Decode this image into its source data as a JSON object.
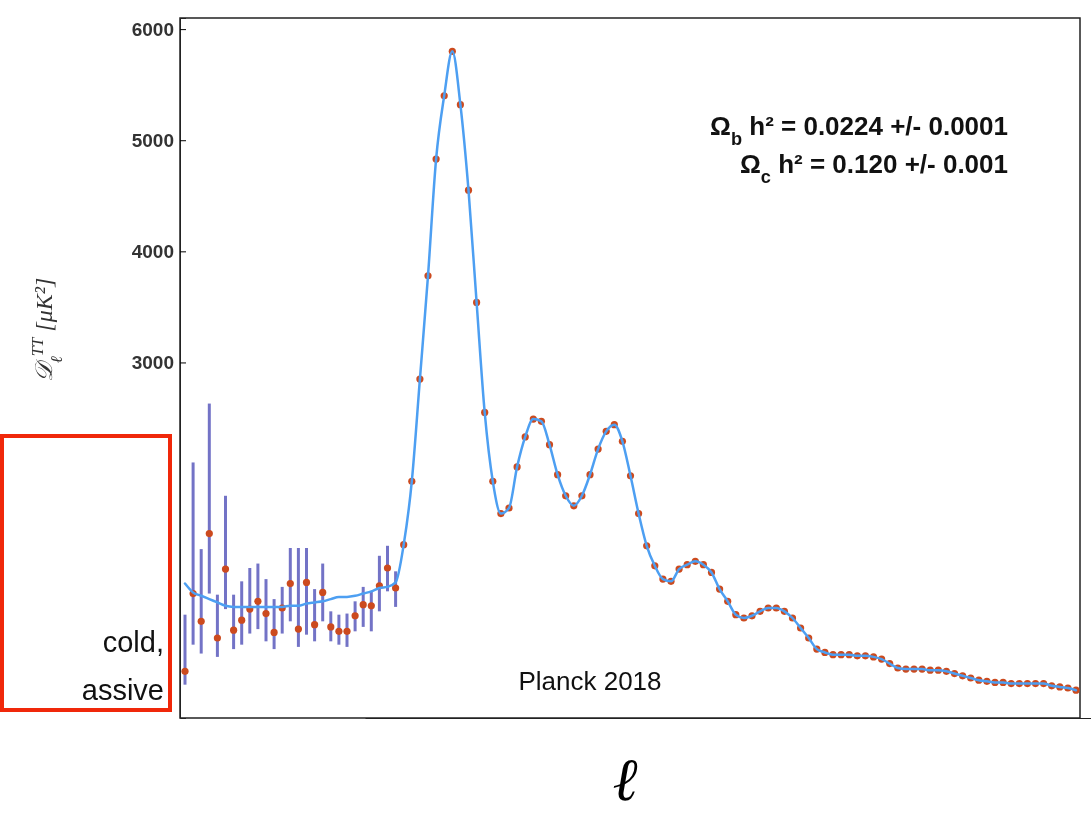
{
  "chart_data": {
    "type": "line",
    "ylabel": "𝒟$_{ℓ}$$^{TT}$ [μK²]",
    "xlabel": "ℓ",
    "ylim": [
      -200,
      6100
    ],
    "yticks": [
      3000,
      4000,
      5000,
      6000
    ],
    "annotations": [
      "Ω$_{b}$ h² = 0.0224 +/- 0.0001",
      "Ω$_{c}$ h² = 0.120 +/- 0.001",
      "Planck 2018",
      "cold,",
      "assive"
    ],
    "categories": [
      null,
      null,
      null,
      null,
      null,
      null,
      null,
      null,
      null,
      null,
      null,
      null,
      null,
      null,
      null,
      null,
      null,
      null,
      null,
      null,
      null,
      null,
      null,
      null,
      null,
      null,
      null,
      null,
      null,
      null,
      null,
      null,
      null,
      null,
      null,
      null,
      null,
      null,
      null,
      null,
      null,
      null,
      null,
      null,
      null,
      null,
      null,
      null,
      null,
      null,
      null,
      null,
      null,
      null,
      null,
      null,
      null,
      null,
      null,
      null,
      null,
      null,
      null,
      null,
      null,
      null,
      null,
      null,
      null,
      null,
      null,
      null,
      null,
      null,
      null,
      null,
      null,
      null,
      null,
      null,
      null,
      null,
      null,
      null,
      null,
      null,
      null,
      null,
      null,
      null,
      null,
      null,
      null,
      null,
      null,
      null,
      null,
      null,
      null,
      null,
      null,
      null,
      null,
      null,
      null,
      null,
      null,
      null,
      null,
      null,
      null
    ],
    "series": [
      {
        "color": "#4d9ff2",
        "values": [
          1010,
          930,
          900,
          870,
          840,
          810,
          800,
          800,
          800,
          800,
          800,
          800,
          800,
          810,
          810,
          830,
          840,
          850,
          870,
          890,
          890,
          900,
          920,
          940,
          970,
          980,
          1020,
          1360,
          1930,
          2850,
          3780,
          4830,
          5400,
          5800,
          5320,
          4550,
          3540,
          2550,
          1930,
          1640,
          1690,
          2060,
          2330,
          2490,
          2470,
          2260,
          1990,
          1800,
          1710,
          1800,
          1990,
          2220,
          2380,
          2440,
          2290,
          1980,
          1640,
          1350,
          1170,
          1050,
          1030,
          1140,
          1180,
          1210,
          1180,
          1110,
          960,
          850,
          730,
          700,
          720,
          760,
          790,
          790,
          760,
          700,
          610,
          520,
          420,
          390,
          370,
          370,
          370,
          360,
          360,
          350,
          330,
          290,
          250,
          240,
          240,
          240,
          230,
          230,
          220,
          200,
          180,
          160,
          140,
          130,
          120,
          120,
          110,
          110,
          110,
          110,
          110,
          90,
          80,
          70,
          50
        ]
      },
      {
        "type": "scatter",
        "color": "#cc4a1e",
        "values": [
          220,
          920,
          670,
          1460,
          520,
          1140,
          590,
          680,
          780,
          850,
          740,
          570,
          790,
          1010,
          600,
          1020,
          640,
          930,
          620,
          580,
          580,
          720,
          820,
          810,
          990,
          1150,
          970,
          1360,
          1930,
          2850,
          3780,
          4830,
          5400,
          5800,
          5320,
          4550,
          3540,
          2550,
          1930,
          1640,
          1690,
          2060,
          2330,
          2490,
          2470,
          2260,
          1990,
          1800,
          1710,
          1800,
          1990,
          2220,
          2380,
          2440,
          2290,
          1980,
          1640,
          1350,
          1170,
          1050,
          1030,
          1140,
          1180,
          1210,
          1180,
          1110,
          960,
          850,
          730,
          700,
          720,
          760,
          790,
          790,
          760,
          700,
          610,
          520,
          420,
          390,
          370,
          370,
          370,
          360,
          360,
          350,
          330,
          290,
          250,
          240,
          240,
          240,
          230,
          230,
          220,
          200,
          180,
          160,
          140,
          130,
          120,
          120,
          110,
          110,
          110,
          110,
          110,
          90,
          80,
          70,
          50
        ],
        "errors": [
          [
            100,
            730
          ],
          [
            460,
            2100
          ],
          [
            380,
            1320
          ],
          [
            920,
            2630
          ],
          [
            350,
            910
          ],
          [
            780,
            1800
          ],
          [
            420,
            910
          ],
          [
            460,
            1030
          ],
          [
            560,
            1150
          ],
          [
            600,
            1190
          ],
          [
            490,
            1050
          ],
          [
            420,
            870
          ],
          [
            560,
            980
          ],
          [
            670,
            1330
          ],
          [
            440,
            1330
          ],
          [
            550,
            1330
          ],
          [
            490,
            960
          ],
          [
            670,
            1190
          ],
          [
            490,
            760
          ],
          [
            460,
            730
          ],
          [
            440,
            740
          ],
          [
            580,
            850
          ],
          [
            620,
            980
          ],
          [
            580,
            940
          ],
          [
            760,
            1260
          ],
          [
            940,
            1350
          ],
          [
            800,
            1120
          ],
          null,
          null,
          null,
          null,
          null,
          null,
          null,
          null,
          null,
          null,
          null,
          null,
          null,
          null,
          null,
          null,
          null,
          null,
          null,
          null,
          null,
          null,
          null,
          null,
          null,
          null,
          null,
          null,
          null,
          null,
          null,
          null,
          null,
          null,
          null,
          null,
          null,
          null,
          null,
          null,
          null,
          null,
          null,
          null,
          null,
          null,
          null,
          null,
          null,
          null,
          null,
          null,
          null,
          null,
          null,
          null,
          null,
          null,
          null,
          null,
          null,
          null,
          null,
          null,
          null,
          null,
          null,
          null,
          null,
          null,
          null,
          null,
          null,
          null,
          null,
          null,
          null,
          null,
          null,
          null,
          null,
          null,
          null,
          null
        ]
      }
    ]
  }
}
